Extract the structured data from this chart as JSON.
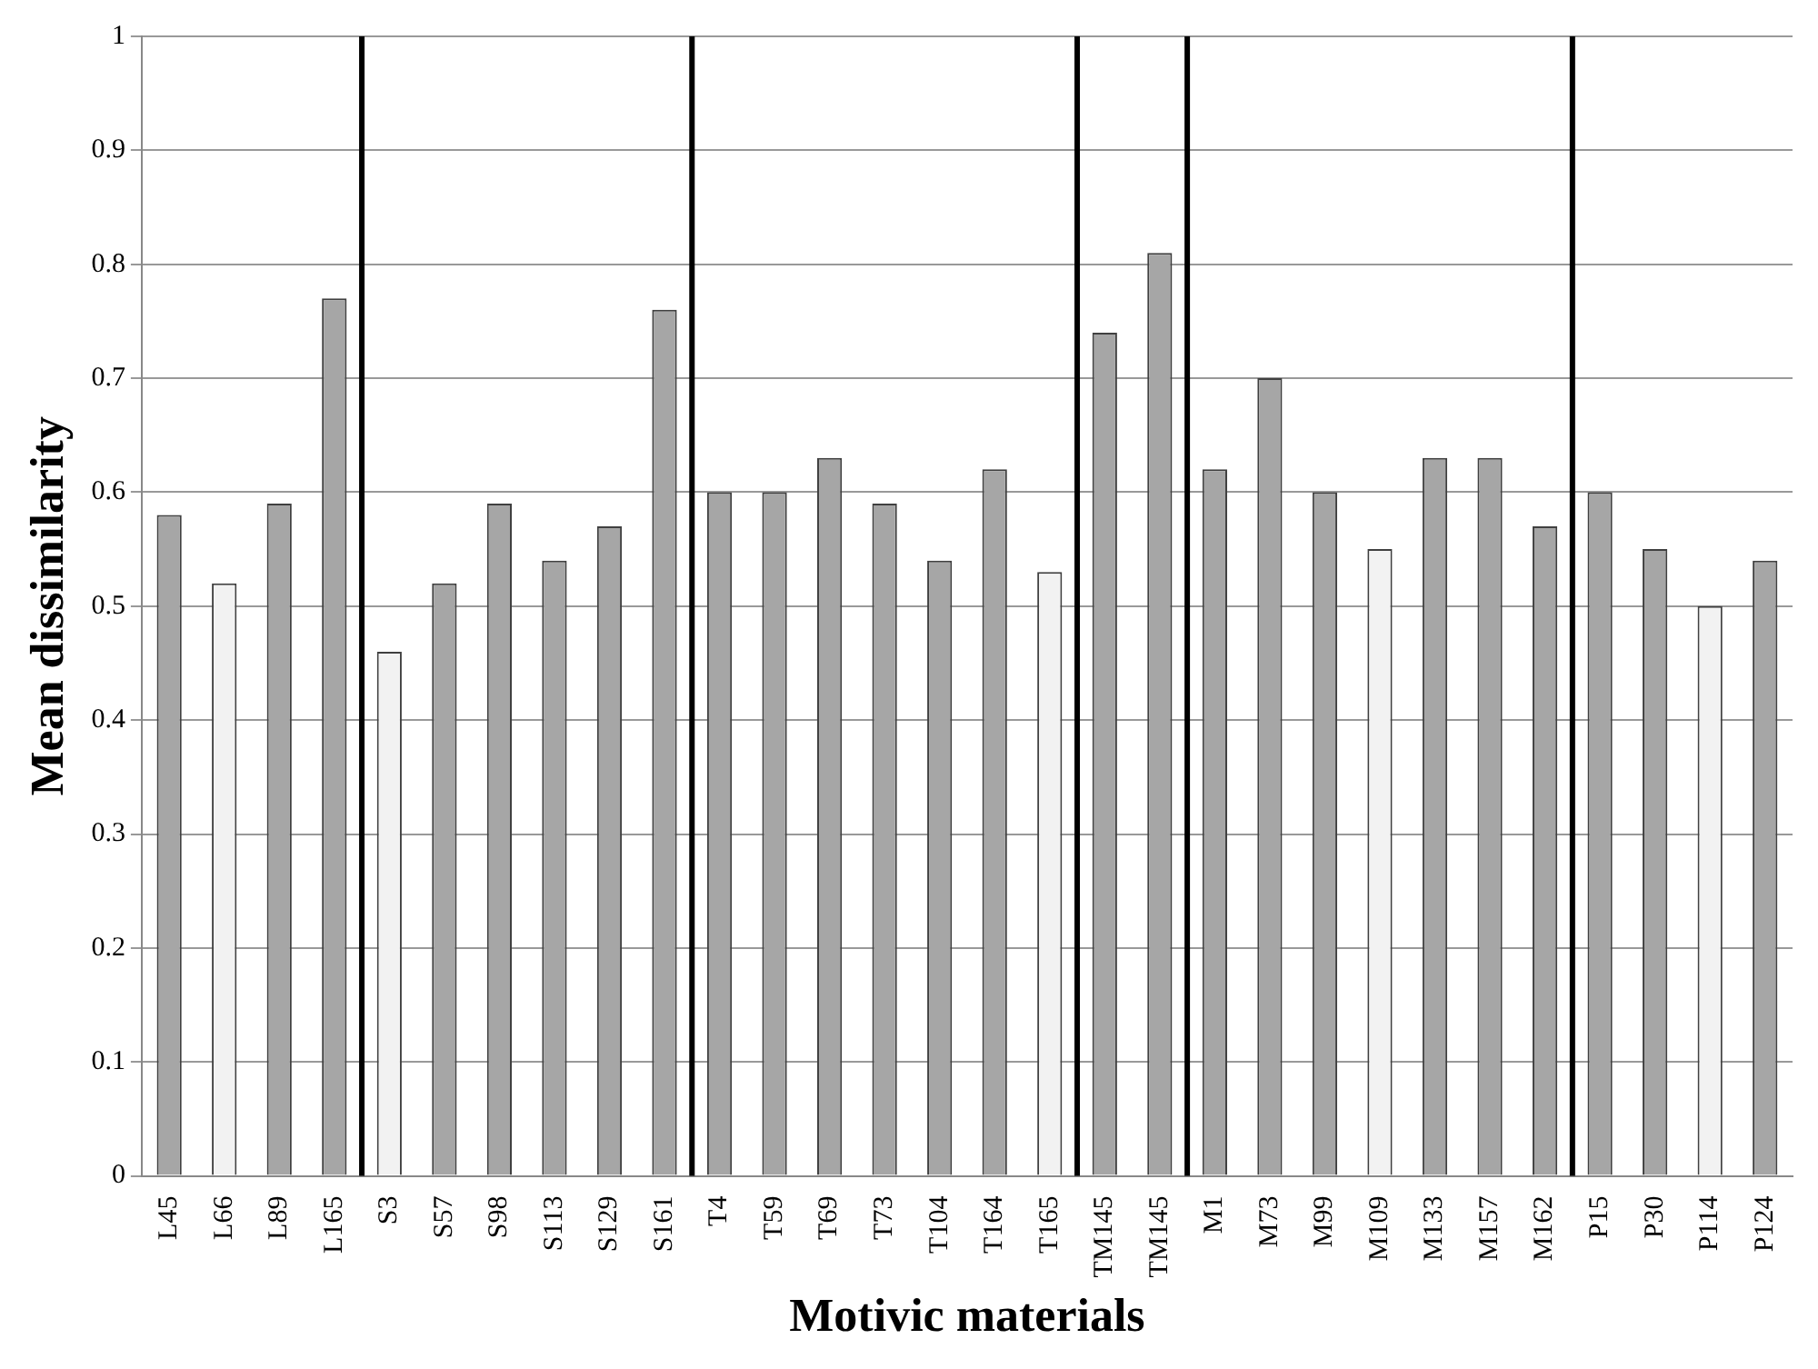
{
  "chart_data": {
    "type": "bar",
    "xlabel": "Motivic materials",
    "ylabel": "Mean dissimilarity",
    "categories": [
      "L45",
      "L66",
      "L89",
      "L165",
      "S3",
      "S57",
      "S98",
      "S113",
      "S129",
      "S161",
      "T4",
      "T59",
      "T69",
      "T73",
      "T104",
      "T164",
      "T165",
      "TM145",
      "TM145",
      "M1",
      "M73",
      "M99",
      "M109",
      "M133",
      "M157",
      "M162",
      "P15",
      "P30",
      "P114",
      "P124"
    ],
    "values": [
      0.58,
      0.52,
      0.59,
      0.77,
      0.46,
      0.52,
      0.59,
      0.54,
      0.57,
      0.76,
      0.6,
      0.6,
      0.63,
      0.59,
      0.54,
      0.62,
      0.53,
      0.74,
      0.81,
      0.62,
      0.7,
      0.6,
      0.55,
      0.63,
      0.63,
      0.57,
      0.6,
      0.55,
      0.5,
      0.54
    ],
    "colors": [
      "#a6a6a6",
      "#f2f2f2",
      "#a6a6a6",
      "#a6a6a6",
      "#f2f2f2",
      "#a6a6a6",
      "#a6a6a6",
      "#a6a6a6",
      "#a6a6a6",
      "#a6a6a6",
      "#a6a6a6",
      "#a6a6a6",
      "#a6a6a6",
      "#a6a6a6",
      "#a6a6a6",
      "#a6a6a6",
      "#f2f2f2",
      "#a6a6a6",
      "#a6a6a6",
      "#a6a6a6",
      "#a6a6a6",
      "#a6a6a6",
      "#f2f2f2",
      "#a6a6a6",
      "#a6a6a6",
      "#a6a6a6",
      "#a6a6a6",
      "#a6a6a6",
      "#f2f2f2",
      "#a6a6a6"
    ],
    "ylim": [
      0,
      1
    ],
    "yticks": [
      0,
      0.1,
      0.2,
      0.3,
      0.4,
      0.5,
      0.6,
      0.7,
      0.8,
      0.9,
      1
    ],
    "grid": "y",
    "legend": false
  }
}
